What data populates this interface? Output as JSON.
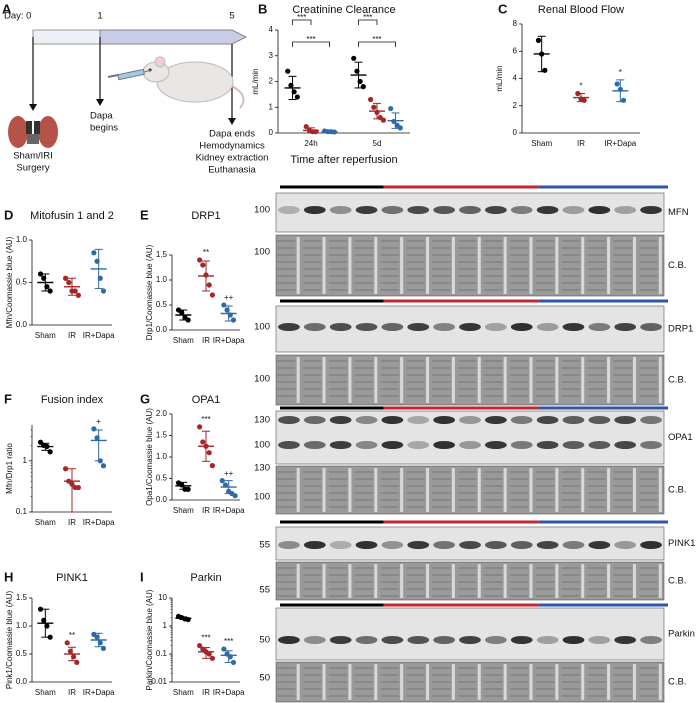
{
  "timeline": {
    "letter": "A",
    "day_label": "Day: 0",
    "ticks": [
      "1",
      "5"
    ],
    "notes": [
      [
        "Sham/IRI",
        "Surgery"
      ],
      [
        "Dapa",
        "begins"
      ],
      [
        "Dapa ends",
        "Hemodynamics",
        "Kidney extraction",
        "Euthanasia"
      ]
    ]
  },
  "chart_data": [
    {
      "type": "dot",
      "letter": "B",
      "title": "Creatinine Clearance",
      "ylabel": "mL/min",
      "xlabel": "Time after reperfusion",
      "categories": [
        "24h",
        "5d"
      ],
      "ylim": [
        0,
        4
      ],
      "yticks": [
        0,
        1,
        2,
        3,
        4
      ],
      "log": false,
      "series": [
        {
          "color": "#000000",
          "points": [
            [
              2.4,
              1.85,
              1.6,
              1.4
            ],
            [
              2.9,
              2.4,
              2.0,
              1.8
            ]
          ],
          "mean": [
            1.75,
            2.25
          ],
          "sd": [
            0.45,
            0.5
          ]
        },
        {
          "color": "#a3262a",
          "points": [
            [
              0.25,
              0.1,
              0.05,
              0.05
            ],
            [
              1.3,
              1.0,
              0.8,
              0.6,
              0.5
            ]
          ],
          "mean": [
            0.1,
            0.85
          ],
          "sd": [
            0.1,
            0.3
          ],
          "brackets": [
            "***",
            "***"
          ]
        },
        {
          "color": "#2e6aa8",
          "points": [
            [
              0.08,
              0.05,
              0.05,
              0.04
            ],
            [
              0.95,
              0.45,
              0.3,
              0.2
            ]
          ],
          "mean": [
            0.05,
            0.48
          ],
          "sd": [
            0.02,
            0.3
          ],
          "brackets": [
            "***",
            "***"
          ]
        }
      ]
    },
    {
      "type": "dot",
      "letter": "C",
      "title": "Renal Blood Flow",
      "ylabel": "mL/min",
      "categories": [
        "Sham",
        "IR",
        "IR+Dapa"
      ],
      "ylim": [
        0,
        8
      ],
      "yticks": [
        0,
        2,
        4,
        6,
        8
      ],
      "log": false,
      "series": [
        {
          "color": "#000000",
          "points": [
            [
              6.8,
              5.8,
              4.6
            ]
          ],
          "mean": [
            5.8
          ],
          "sd": [
            1.3
          ]
        },
        {
          "color": "#a3262a",
          "points": [
            [
              2.9,
              2.5,
              2.4
            ]
          ],
          "mean": [
            2.6
          ],
          "sd": [
            0.3
          ],
          "sig": [
            "*"
          ]
        },
        {
          "color": "#2e6aa8",
          "points": [
            [
              3.6,
              3.2,
              2.4
            ]
          ],
          "mean": [
            3.1
          ],
          "sd": [
            0.8
          ],
          "sig": [
            "*"
          ]
        }
      ]
    },
    {
      "type": "dot",
      "letter": "D",
      "title": "Mitofusin 1 and 2",
      "ylabel": "Mfn/Coomassie blue (AU)",
      "categories": [
        "Sham",
        "IR",
        "IR+Dapa"
      ],
      "ylim": [
        0,
        1
      ],
      "yticks": [
        {
          "value": 0,
          "label": "0.0"
        },
        {
          "value": 0.5,
          "label": "0.5"
        },
        {
          "value": 1,
          "label": "1.0"
        }
      ],
      "log": false,
      "series": [
        {
          "color": "#000000",
          "points": [
            [
              0.6,
              0.55,
              0.45,
              0.4
            ]
          ],
          "mean": [
            0.5
          ],
          "sd": [
            0.1
          ]
        },
        {
          "color": "#a3262a",
          "points": [
            [
              0.55,
              0.5,
              0.4,
              0.4,
              0.35
            ]
          ],
          "mean": [
            0.45
          ],
          "sd": [
            0.1
          ]
        },
        {
          "color": "#2e6aa8",
          "points": [
            [
              0.85,
              0.75,
              0.55,
              0.4
            ]
          ],
          "mean": [
            0.66
          ],
          "sd": [
            0.23
          ]
        }
      ]
    },
    {
      "type": "dot",
      "letter": "E",
      "title": "DRP1",
      "ylabel": "Drp1/Coomassie blue (AU)",
      "categories": [
        "Sham",
        "IR",
        "IR+Dapa"
      ],
      "ylim": [
        0,
        1.5
      ],
      "yticks": [
        {
          "value": 0,
          "label": "0.0"
        },
        {
          "value": 0.5,
          "label": "0.5"
        },
        {
          "value": 1,
          "label": "1.0"
        },
        {
          "value": 1.5,
          "label": "1.5"
        }
      ],
      "log": false,
      "series": [
        {
          "color": "#000000",
          "points": [
            [
              0.4,
              0.35,
              0.25,
              0.2
            ]
          ],
          "mean": [
            0.3
          ],
          "sd": [
            0.1
          ]
        },
        {
          "color": "#a3262a",
          "points": [
            [
              1.4,
              1.3,
              1.1,
              0.9,
              0.7
            ]
          ],
          "mean": [
            1.08
          ],
          "sd": [
            0.3
          ],
          "sig": [
            "**"
          ]
        },
        {
          "color": "#2e6aa8",
          "points": [
            [
              0.5,
              0.4,
              0.3,
              0.2
            ]
          ],
          "mean": [
            0.33
          ],
          "sd": [
            0.15
          ],
          "sig": [
            "++"
          ]
        }
      ]
    },
    {
      "type": "dot",
      "letter": "F",
      "title": "Fusion index",
      "ylabel": "Mfn/Drp1 ratio",
      "categories": [
        "Sham",
        "IR",
        "IR+Dapa"
      ],
      "ylim": [
        0.1,
        5
      ],
      "yticks": [
        0.1,
        1
      ],
      "log": true,
      "series": [
        {
          "color": "#000000",
          "points": [
            [
              2.3,
              2.0,
              1.9,
              1.5
            ]
          ],
          "mean": [
            1.9
          ],
          "sd": [
            0.3
          ]
        },
        {
          "color": "#a3262a",
          "points": [
            [
              0.7,
              0.4,
              0.35,
              0.3,
              0.3
            ]
          ],
          "mean": [
            0.4
          ],
          "sd": [
            0.3
          ]
        },
        {
          "color": "#2e6aa8",
          "points": [
            [
              4.2,
              2.8,
              1.0,
              0.8
            ]
          ],
          "mean": [
            2.5
          ],
          "sd": [
            1.5
          ],
          "sig": [
            "+"
          ]
        }
      ]
    },
    {
      "type": "dot",
      "letter": "G",
      "title": "OPA1",
      "ylabel": "Opa1/Coomassie blue (AU)",
      "categories": [
        "Sham",
        "IR",
        "IR+Dapa"
      ],
      "ylim": [
        0,
        2
      ],
      "yticks": [
        {
          "value": 0,
          "label": "0.0"
        },
        {
          "value": 0.5,
          "label": "0.5"
        },
        {
          "value": 1,
          "label": "1.0"
        },
        {
          "value": 1.5,
          "label": "1.5"
        },
        {
          "value": 2,
          "label": "2.0"
        }
      ],
      "log": false,
      "series": [
        {
          "color": "#000000",
          "points": [
            [
              0.4,
              0.35,
              0.25,
              0.25
            ]
          ],
          "mean": [
            0.33
          ],
          "sd": [
            0.08
          ]
        },
        {
          "color": "#a3262a",
          "points": [
            [
              1.7,
              1.35,
              1.25,
              1.1,
              0.8
            ]
          ],
          "mean": [
            1.25
          ],
          "sd": [
            0.35
          ],
          "sig": [
            "***"
          ]
        },
        {
          "color": "#2e6aa8",
          "points": [
            [
              0.45,
              0.35,
              0.2,
              0.15,
              0.1
            ]
          ],
          "mean": [
            0.3
          ],
          "sd": [
            0.15
          ],
          "sig": [
            "++"
          ]
        }
      ]
    },
    {
      "type": "dot",
      "letter": "H",
      "title": "PINK1",
      "ylabel": "Pink1/Coomassie blue (AU)",
      "categories": [
        "Sham",
        "IR",
        "IR+Dapa"
      ],
      "ylim": [
        0,
        1.5
      ],
      "yticks": [
        {
          "value": 0,
          "label": "0.0"
        },
        {
          "value": 0.5,
          "label": "0.5"
        },
        {
          "value": 1,
          "label": "1.0"
        },
        {
          "value": 1.5,
          "label": "1.5"
        }
      ],
      "log": false,
      "series": [
        {
          "color": "#000000",
          "points": [
            [
              1.3,
              1.1,
              1.0,
              0.8
            ]
          ],
          "mean": [
            1.05
          ],
          "sd": [
            0.25
          ]
        },
        {
          "color": "#a3262a",
          "points": [
            [
              0.7,
              0.55,
              0.45,
              0.35
            ]
          ],
          "mean": [
            0.5
          ],
          "sd": [
            0.12
          ],
          "sig": [
            "**"
          ]
        },
        {
          "color": "#2e6aa8",
          "points": [
            [
              0.85,
              0.8,
              0.7,
              0.6
            ]
          ],
          "mean": [
            0.75
          ],
          "sd": [
            0.12
          ]
        }
      ]
    },
    {
      "type": "dot",
      "letter": "I",
      "title": "Parkin",
      "ylabel": "Parkin/Coomassie blue (AU)",
      "categories": [
        "Sham",
        "IR",
        "IR+Dapa"
      ],
      "ylim": [
        0.01,
        10
      ],
      "yticks": [
        0.01,
        0.1,
        1,
        10
      ],
      "log": true,
      "series": [
        {
          "color": "#000000",
          "points": [
            [
              2.2,
              2.0,
              1.8,
              1.7
            ]
          ],
          "mean": [
            1.9
          ],
          "sd": [
            0.2
          ]
        },
        {
          "color": "#a3262a",
          "points": [
            [
              0.2,
              0.15,
              0.12,
              0.1,
              0.07
            ]
          ],
          "mean": [
            0.12
          ],
          "sd": [
            0.05
          ],
          "sig": [
            "***"
          ]
        },
        {
          "color": "#2e6aa8",
          "points": [
            [
              0.15,
              0.1,
              0.08,
              0.05
            ]
          ],
          "mean": [
            0.09
          ],
          "sd": [
            0.04
          ],
          "sig": [
            "***"
          ]
        }
      ]
    }
  ],
  "blots": [
    {
      "label": "MFN",
      "markers": [
        "100"
      ]
    },
    {
      "label": "C.B.",
      "markers": [
        "100"
      ]
    },
    {
      "label": "DRP1",
      "markers": [
        "100"
      ]
    },
    {
      "label": "C.B.",
      "markers": [
        "100"
      ]
    },
    {
      "label": "OPA1",
      "markers": [
        "130",
        "100"
      ]
    },
    {
      "label": "C.B.",
      "markers": [
        "130",
        "100"
      ]
    },
    {
      "label": "PINK1",
      "markers": [
        "55"
      ]
    },
    {
      "label": "C.B.",
      "markers": [
        "55"
      ]
    },
    {
      "label": "Parkin",
      "markers": [
        "50"
      ]
    },
    {
      "label": "C.B.",
      "markers": [
        "50"
      ]
    }
  ]
}
